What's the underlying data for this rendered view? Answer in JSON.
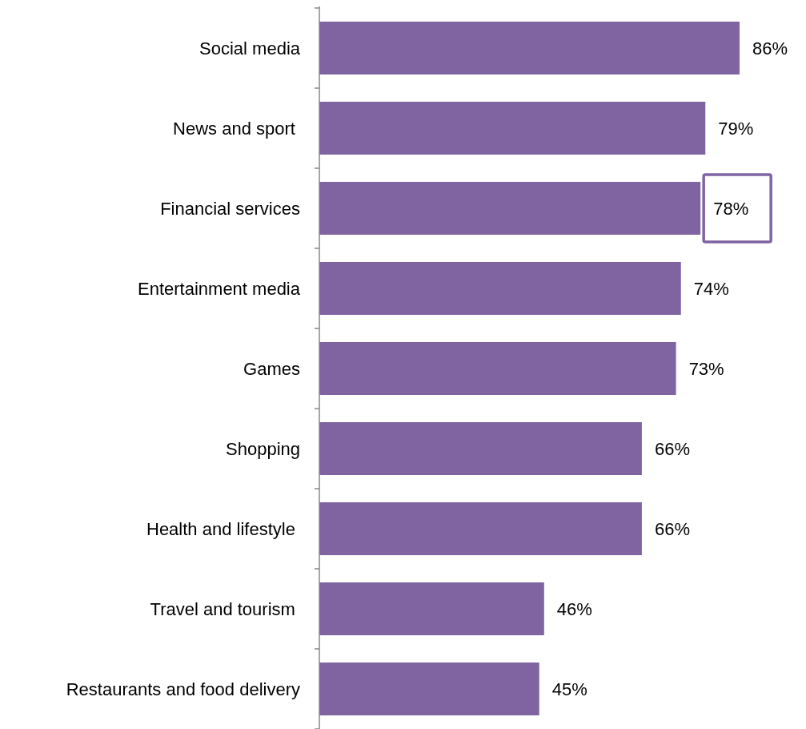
{
  "chart_data": {
    "type": "bar",
    "orientation": "horizontal",
    "categories": [
      "Social media",
      "News and sport ",
      "Financial services",
      "Entertainment media",
      "Games",
      "Shopping",
      "Health and lifestyle ",
      "Travel and tourism ",
      "Restaurants and food delivery"
    ],
    "values": [
      86,
      79,
      78,
      74,
      73,
      66,
      66,
      46,
      45
    ],
    "value_labels": [
      "86%",
      "79%",
      "78%",
      "74%",
      "73%",
      "66%",
      "66%",
      "46%",
      "45%"
    ],
    "color": "#8064a2"
  }
}
